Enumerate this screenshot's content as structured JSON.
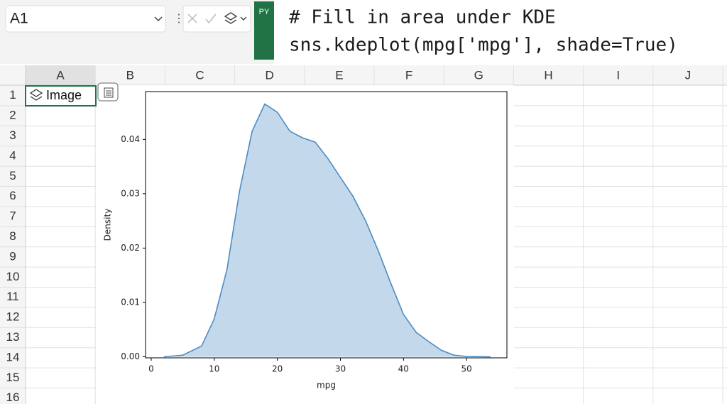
{
  "name_box": "A1",
  "python_badge": "PY",
  "formula": [
    "# Fill in area under KDE",
    "sns.kdeplot(mpg['mpg'], shade=True)"
  ],
  "columns": [
    "A",
    "B",
    "C",
    "D",
    "E",
    "F",
    "G",
    "H",
    "I",
    "J"
  ],
  "rows": [
    "1",
    "2",
    "3",
    "4",
    "5",
    "6",
    "7",
    "8",
    "9",
    "10",
    "11",
    "12",
    "13",
    "14",
    "15",
    "16"
  ],
  "cell_a1": "Image",
  "chart_data": {
    "type": "area",
    "x": [
      2,
      5,
      8,
      10,
      12,
      14,
      16,
      18,
      20,
      22,
      24,
      26,
      28,
      30,
      32,
      34,
      36,
      38,
      40,
      42,
      44,
      46,
      48,
      50,
      53.8
    ],
    "values": [
      0,
      0.0003,
      0.002,
      0.007,
      0.016,
      0.0305,
      0.0415,
      0.0465,
      0.045,
      0.0415,
      0.0403,
      0.0395,
      0.0365,
      0.033,
      0.0295,
      0.025,
      0.0195,
      0.0135,
      0.0078,
      0.0045,
      0.0028,
      0.0012,
      0.0003,
      5e-05,
      0
    ],
    "color": "#4c8cc4",
    "fill_color": "#c3d8ea",
    "xlabel": "mpg",
    "ylabel": "Density",
    "xlim": [
      -0.9,
      56.4
    ],
    "ylim": [
      -0.0002,
      0.0488
    ],
    "xticks": [
      0,
      10,
      20,
      30,
      40,
      50
    ],
    "yticks": [
      {
        "value": 0,
        "label": "0.00"
      },
      0.01,
      0.02,
      0.03,
      0.04
    ],
    "grid": false
  }
}
